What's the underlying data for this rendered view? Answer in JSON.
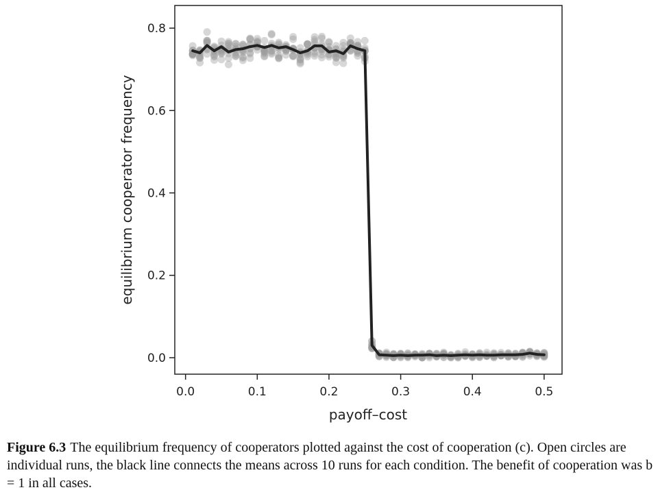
{
  "chart_data": {
    "type": "scatter",
    "xlabel": "payoff–cost",
    "ylabel": "equilibrium cooperator frequency",
    "xlim": [
      -0.015,
      0.525
    ],
    "ylim": [
      -0.04,
      0.855
    ],
    "xticks": [
      0.0,
      0.1,
      0.2,
      0.3,
      0.4,
      0.5
    ],
    "xtick_labels": [
      "0.0",
      "0.1",
      "0.2",
      "0.3",
      "0.4",
      "0.5"
    ],
    "yticks": [
      0.0,
      0.2,
      0.4,
      0.6,
      0.8
    ],
    "ytick_labels": [
      "0.0",
      "0.2",
      "0.4",
      "0.6",
      "0.8"
    ],
    "runs_per_condition": 10,
    "grid": false,
    "point_color": "#9a9a9a",
    "line_color": "#222222",
    "series": [
      {
        "kind": "mean-line",
        "x": [
          0.01,
          0.02,
          0.03,
          0.04,
          0.05,
          0.06,
          0.07,
          0.08,
          0.09,
          0.1,
          0.11,
          0.12,
          0.13,
          0.14,
          0.15,
          0.16,
          0.17,
          0.18,
          0.19,
          0.2,
          0.21,
          0.22,
          0.23,
          0.24,
          0.25,
          0.26,
          0.27,
          0.28,
          0.29,
          0.3,
          0.31,
          0.32,
          0.33,
          0.34,
          0.35,
          0.36,
          0.37,
          0.38,
          0.39,
          0.4,
          0.41,
          0.42,
          0.43,
          0.44,
          0.45,
          0.46,
          0.47,
          0.48,
          0.49,
          0.5
        ],
        "y": [
          0.745,
          0.74,
          0.758,
          0.745,
          0.755,
          0.742,
          0.748,
          0.75,
          0.755,
          0.758,
          0.753,
          0.758,
          0.752,
          0.755,
          0.748,
          0.74,
          0.745,
          0.757,
          0.757,
          0.742,
          0.745,
          0.738,
          0.757,
          0.75,
          0.745,
          0.03,
          0.007,
          0.006,
          0.005,
          0.006,
          0.005,
          0.006,
          0.006,
          0.007,
          0.005,
          0.006,
          0.005,
          0.006,
          0.007,
          0.006,
          0.007,
          0.006,
          0.006,
          0.007,
          0.007,
          0.007,
          0.008,
          0.011,
          0.008,
          0.007
        ]
      }
    ]
  },
  "caption": {
    "label": "Figure 6.3",
    "text": "The equilibrium frequency of cooperators plotted against the cost of cooperation (c). Open circles are individual runs, the black line connects the means across 10 runs for each condition. The benefit of cooperation was b = 1 in all cases."
  }
}
